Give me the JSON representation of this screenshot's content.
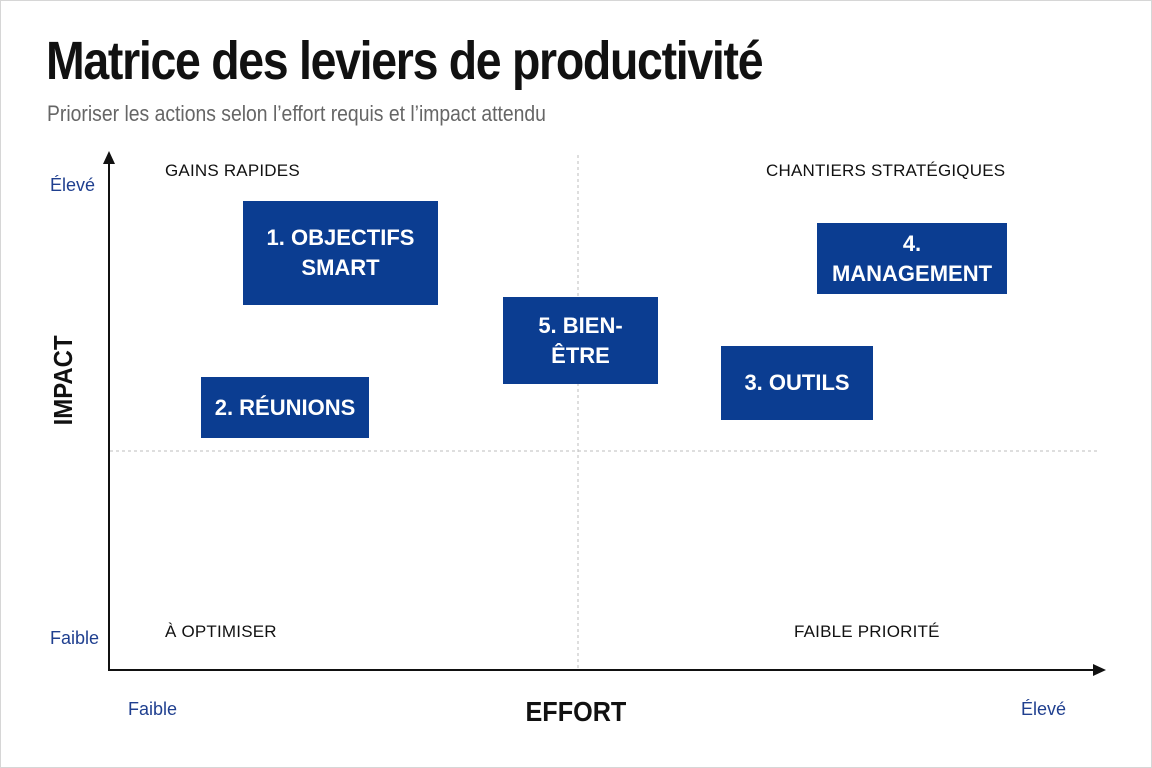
{
  "title": "Matrice des leviers de productivité",
  "subtitle": "Prioriser les actions selon l’effort requis et l’impact attendu",
  "axes": {
    "y_title": "IMPACT",
    "x_title": "EFFORT",
    "y_high": "Élevé",
    "y_low": "Faible",
    "x_low": "Faible",
    "x_high": "Élevé"
  },
  "quadrants": {
    "top_left": "GAINS RAPIDES",
    "top_right": "CHANTIERS STRATÉGIQUES",
    "bottom_left": "À OPTIMISER",
    "bottom_right": "FAIBLE PRIORITÉ"
  },
  "levers": [
    {
      "id": "objectifs",
      "line1": "1. OBJECTIFS",
      "line2": "SMART"
    },
    {
      "id": "reunions",
      "line1": "2. RÉUNIONS",
      "line2": ""
    },
    {
      "id": "outils",
      "line1": "3. OUTILS",
      "line2": ""
    },
    {
      "id": "management",
      "line1": "4. MANAGEMENT",
      "line2": ""
    },
    {
      "id": "bien-etre",
      "line1": "5. BIEN-ÊTRE",
      "line2": ""
    }
  ],
  "colors": {
    "accent": "#0b3d91",
    "axis_label": "#1f3f8f",
    "text": "#111111",
    "subtitle": "#666666"
  }
}
